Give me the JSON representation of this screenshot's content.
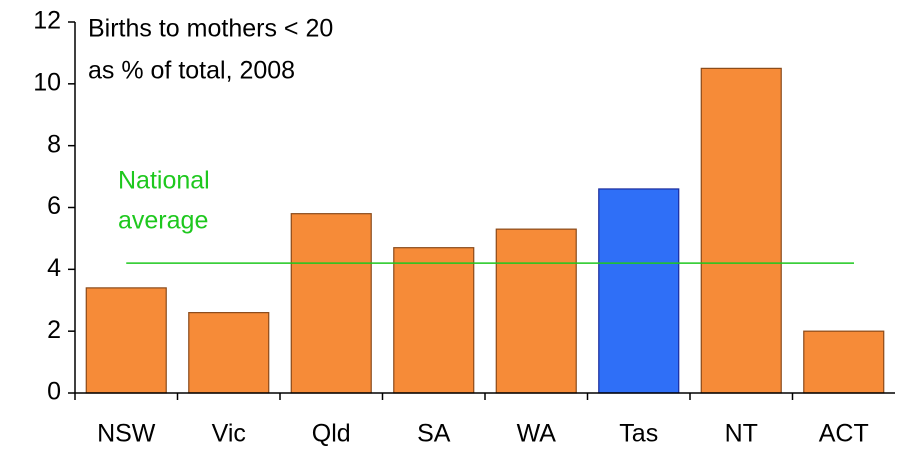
{
  "chart_data": {
    "type": "bar",
    "title": [
      "Births to mothers < 20",
      "as % of total, 2008"
    ],
    "categories": [
      "NSW",
      "Vic",
      "Qld",
      "SA",
      "WA",
      "Tas",
      "NT",
      "ACT"
    ],
    "values": [
      3.4,
      2.6,
      5.8,
      4.7,
      5.3,
      6.6,
      10.5,
      2.0
    ],
    "colors": [
      "#f68b38",
      "#f68b38",
      "#f68b38",
      "#f68b38",
      "#f68b38",
      "#2f6ff7",
      "#f68b38",
      "#f68b38"
    ],
    "ylim": [
      0,
      12
    ],
    "yticks": [
      0,
      2,
      4,
      6,
      8,
      10,
      12
    ],
    "reference_line": {
      "value": 4.2,
      "label": [
        "National",
        "average"
      ],
      "color": "#1ec81e"
    }
  }
}
